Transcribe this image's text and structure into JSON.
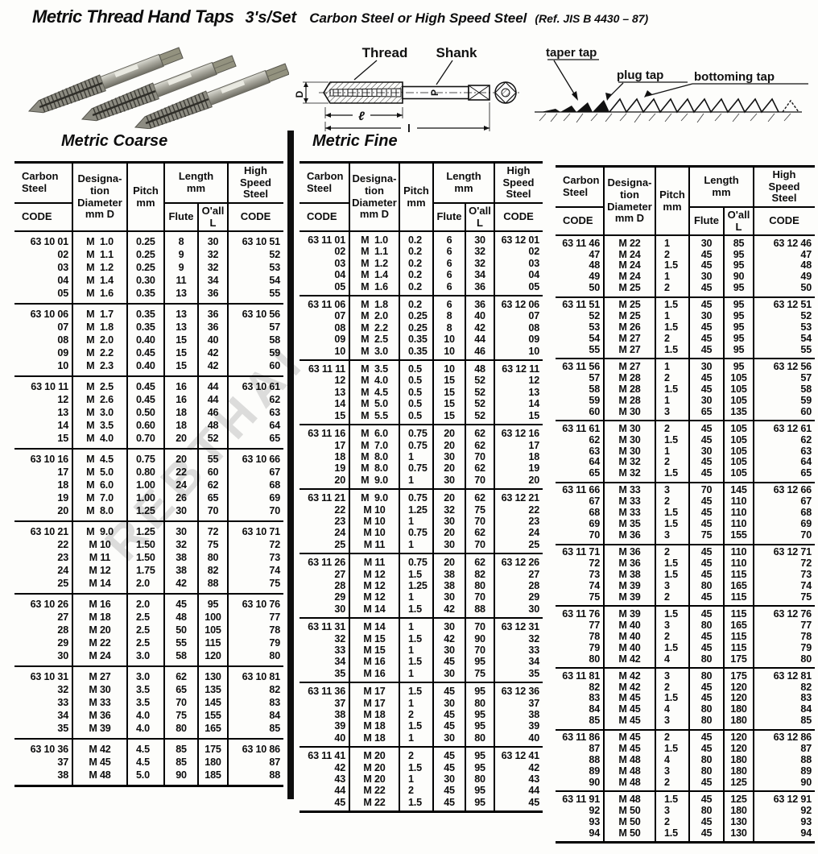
{
  "header": {
    "title": "Metric Thread Hand Taps",
    "set": "3's/Set",
    "material": "Carbon Steel or  High Speed Steel",
    "ref": "(Ref. JIS B 4430 – 87)"
  },
  "sections": {
    "coarse_title": "Metric Coarse",
    "fine_title": "Metric Fine"
  },
  "drawing": {
    "thread": "Thread",
    "shank": "Shank",
    "dim_d": "D",
    "dim_p": "P",
    "dim_len_small": "ℓ",
    "dim_len_big": "l"
  },
  "tap_types": {
    "taper": "taper tap",
    "plug": "plug tap",
    "bottoming": "bottoming tap"
  },
  "watermark": {
    "text": "REBTHAI"
  },
  "column_headers": {
    "carbon_steel": "Carbon\nSteel",
    "code": "CODE",
    "designation": "Designa-\ntion\nDiameter\nmm D",
    "pitch": "Pitch\nmm",
    "length": "Length\nmm",
    "flute": "Flute",
    "oall": "O'all\nL",
    "high_speed_steel": "High\nSpeed\nSteel"
  },
  "tables": {
    "coarse": {
      "groups": [
        [
          [
            "63 10 01",
            "M  1.0",
            "0.25",
            "8",
            "30",
            "63 10 51"
          ],
          [
            "02",
            "M  1.1",
            "0.25",
            "9",
            "32",
            "52"
          ],
          [
            "03",
            "M  1.2",
            "0.25",
            "9",
            "32",
            "53"
          ],
          [
            "04",
            "M  1.4",
            "0.30",
            "11",
            "34",
            "54"
          ],
          [
            "05",
            "M  1.6",
            "0.35",
            "13",
            "36",
            "55"
          ]
        ],
        [
          [
            "63 10 06",
            "M  1.7",
            "0.35",
            "13",
            "36",
            "63 10 56"
          ],
          [
            "07",
            "M  1.8",
            "0.35",
            "13",
            "36",
            "57"
          ],
          [
            "08",
            "M  2.0",
            "0.40",
            "15",
            "40",
            "58"
          ],
          [
            "09",
            "M  2.2",
            "0.45",
            "15",
            "42",
            "59"
          ],
          [
            "10",
            "M  2.3",
            "0.40",
            "15",
            "42",
            "60"
          ]
        ],
        [
          [
            "63 10 11",
            "M  2.5",
            "0.45",
            "16",
            "44",
            "63 10 61"
          ],
          [
            "12",
            "M  2.6",
            "0.45",
            "16",
            "44",
            "62"
          ],
          [
            "13",
            "M  3.0",
            "0.50",
            "18",
            "46",
            "63"
          ],
          [
            "14",
            "M  3.5",
            "0.60",
            "18",
            "48",
            "64"
          ],
          [
            "15",
            "M  4.0",
            "0.70",
            "20",
            "52",
            "65"
          ]
        ],
        [
          [
            "63 10 16",
            "M  4.5",
            "0.75",
            "20",
            "55",
            "63 10 66"
          ],
          [
            "17",
            "M  5.0",
            "0.80",
            "22",
            "60",
            "67"
          ],
          [
            "18",
            "M  6.0",
            "1.00",
            "24",
            "62",
            "68"
          ],
          [
            "19",
            "M  7.0",
            "1.00",
            "26",
            "65",
            "69"
          ],
          [
            "20",
            "M  8.0",
            "1.25",
            "30",
            "70",
            "70"
          ]
        ],
        [
          [
            "63 10 21",
            "M  9.0",
            "1.25",
            "30",
            "72",
            "63 10 71"
          ],
          [
            "22",
            "M 10",
            "1.50",
            "32",
            "75",
            "72"
          ],
          [
            "23",
            "M 11",
            "1.50",
            "38",
            "80",
            "73"
          ],
          [
            "24",
            "M 12",
            "1.75",
            "38",
            "82",
            "74"
          ],
          [
            "25",
            "M 14",
            "2.0",
            "42",
            "88",
            "75"
          ]
        ],
        [
          [
            "63 10 26",
            "M 16",
            "2.0",
            "45",
            "95",
            "63 10 76"
          ],
          [
            "27",
            "M 18",
            "2.5",
            "48",
            "100",
            "77"
          ],
          [
            "28",
            "M 20",
            "2.5",
            "50",
            "105",
            "78"
          ],
          [
            "29",
            "M 22",
            "2.5",
            "55",
            "115",
            "79"
          ],
          [
            "30",
            "M 24",
            "3.0",
            "58",
            "120",
            "80"
          ]
        ],
        [
          [
            "63 10 31",
            "M 27",
            "3.0",
            "62",
            "130",
            "63 10 81"
          ],
          [
            "32",
            "M 30",
            "3.5",
            "65",
            "135",
            "82"
          ],
          [
            "33",
            "M 33",
            "3.5",
            "70",
            "145",
            "83"
          ],
          [
            "34",
            "M 36",
            "4.0",
            "75",
            "155",
            "84"
          ],
          [
            "35",
            "M 39",
            "4.0",
            "80",
            "165",
            "85"
          ]
        ],
        [
          [
            "63 10 36",
            "M 42",
            "4.5",
            "85",
            "175",
            "63 10 86"
          ],
          [
            "37",
            "M 45",
            "4.5",
            "85",
            "180",
            "87"
          ],
          [
            "38",
            "M 48",
            "5.0",
            "90",
            "185",
            "88"
          ]
        ]
      ]
    },
    "fine_left": {
      "groups": [
        [
          [
            "63 11 01",
            "M  1.0",
            "0.2",
            "6",
            "30",
            "63 12 01"
          ],
          [
            "02",
            "M  1.1",
            "0.2",
            "6",
            "32",
            "02"
          ],
          [
            "03",
            "M  1.2",
            "0.2",
            "6",
            "32",
            "03"
          ],
          [
            "04",
            "M  1.4",
            "0.2",
            "6",
            "34",
            "04"
          ],
          [
            "05",
            "M  1.6",
            "0.2",
            "6",
            "36",
            "05"
          ]
        ],
        [
          [
            "63 11 06",
            "M  1.8",
            "0.2",
            "6",
            "36",
            "63 12 06"
          ],
          [
            "07",
            "M  2.0",
            "0.25",
            "8",
            "40",
            "07"
          ],
          [
            "08",
            "M  2.2",
            "0.25",
            "8",
            "42",
            "08"
          ],
          [
            "09",
            "M  2.5",
            "0.35",
            "10",
            "44",
            "09"
          ],
          [
            "10",
            "M  3.0",
            "0.35",
            "10",
            "46",
            "10"
          ]
        ],
        [
          [
            "63 11 11",
            "M  3.5",
            "0.5",
            "10",
            "48",
            "63 12 11"
          ],
          [
            "12",
            "M  4.0",
            "0.5",
            "15",
            "52",
            "12"
          ],
          [
            "13",
            "M  4.5",
            "0.5",
            "15",
            "52",
            "13"
          ],
          [
            "14",
            "M  5.0",
            "0.5",
            "15",
            "52",
            "14"
          ],
          [
            "15",
            "M  5.5",
            "0.5",
            "15",
            "52",
            "15"
          ]
        ],
        [
          [
            "63 11 16",
            "M  6.0",
            "0.75",
            "20",
            "62",
            "63 12 16"
          ],
          [
            "17",
            "M  7.0",
            "0.75",
            "20",
            "62",
            "17"
          ],
          [
            "18",
            "M  8.0",
            "1",
            "30",
            "70",
            "18"
          ],
          [
            "19",
            "M  8.0",
            "0.75",
            "20",
            "62",
            "19"
          ],
          [
            "20",
            "M  9.0",
            "1",
            "30",
            "70",
            "20"
          ]
        ],
        [
          [
            "63 11 21",
            "M  9.0",
            "0.75",
            "20",
            "62",
            "63 12 21"
          ],
          [
            "22",
            "M 10",
            "1.25",
            "32",
            "75",
            "22"
          ],
          [
            "23",
            "M 10",
            "1",
            "30",
            "70",
            "23"
          ],
          [
            "24",
            "M 10",
            "0.75",
            "20",
            "62",
            "24"
          ],
          [
            "25",
            "M 11",
            "1",
            "30",
            "70",
            "25"
          ]
        ],
        [
          [
            "63 11 26",
            "M 11",
            "0.75",
            "20",
            "62",
            "63 12 26"
          ],
          [
            "27",
            "M 12",
            "1.5",
            "38",
            "82",
            "27"
          ],
          [
            "28",
            "M 12",
            "1.25",
            "38",
            "80",
            "28"
          ],
          [
            "29",
            "M 12",
            "1",
            "30",
            "70",
            "29"
          ],
          [
            "30",
            "M 14",
            "1.5",
            "42",
            "88",
            "30"
          ]
        ],
        [
          [
            "63 11 31",
            "M 14",
            "1",
            "30",
            "70",
            "63 12 31"
          ],
          [
            "32",
            "M 15",
            "1.5",
            "42",
            "90",
            "32"
          ],
          [
            "33",
            "M 15",
            "1",
            "30",
            "70",
            "33"
          ],
          [
            "34",
            "M 16",
            "1.5",
            "45",
            "95",
            "34"
          ],
          [
            "35",
            "M 16",
            "1",
            "30",
            "75",
            "35"
          ]
        ],
        [
          [
            "63 11 36",
            "M 17",
            "1.5",
            "45",
            "95",
            "63 12 36"
          ],
          [
            "37",
            "M 17",
            "1",
            "30",
            "80",
            "37"
          ],
          [
            "38",
            "M 18",
            "2",
            "45",
            "95",
            "38"
          ],
          [
            "39",
            "M 18",
            "1.5",
            "45",
            "95",
            "39"
          ],
          [
            "40",
            "M 18",
            "1",
            "30",
            "80",
            "40"
          ]
        ],
        [
          [
            "63 11 41",
            "M 20",
            "2",
            "45",
            "95",
            "63 12 41"
          ],
          [
            "42",
            "M 20",
            "1.5",
            "45",
            "95",
            "42"
          ],
          [
            "43",
            "M 20",
            "1",
            "30",
            "80",
            "43"
          ],
          [
            "44",
            "M 22",
            "2",
            "45",
            "95",
            "44"
          ],
          [
            "45",
            "M 22",
            "1.5",
            "45",
            "95",
            "45"
          ]
        ]
      ]
    },
    "fine_right": {
      "groups": [
        [
          [
            "63 11 46",
            "M 22",
            "1",
            "30",
            "85",
            "63 12 46"
          ],
          [
            "47",
            "M 24",
            "2",
            "45",
            "95",
            "47"
          ],
          [
            "48",
            "M 24",
            "1.5",
            "45",
            "95",
            "48"
          ],
          [
            "49",
            "M 24",
            "1",
            "30",
            "90",
            "49"
          ],
          [
            "50",
            "M 25",
            "2",
            "45",
            "95",
            "50"
          ]
        ],
        [
          [
            "63 11 51",
            "M 25",
            "1.5",
            "45",
            "95",
            "63 12 51"
          ],
          [
            "52",
            "M 25",
            "1",
            "30",
            "95",
            "52"
          ],
          [
            "53",
            "M 26",
            "1.5",
            "45",
            "95",
            "53"
          ],
          [
            "54",
            "M 27",
            "2",
            "45",
            "95",
            "54"
          ],
          [
            "55",
            "M 27",
            "1.5",
            "45",
            "95",
            "55"
          ]
        ],
        [
          [
            "63 11 56",
            "M 27",
            "1",
            "30",
            "95",
            "63 12 56"
          ],
          [
            "57",
            "M 28",
            "2",
            "45",
            "105",
            "57"
          ],
          [
            "58",
            "M 28",
            "1.5",
            "45",
            "105",
            "58"
          ],
          [
            "59",
            "M 28",
            "1",
            "30",
            "105",
            "59"
          ],
          [
            "60",
            "M 30",
            "3",
            "65",
            "135",
            "60"
          ]
        ],
        [
          [
            "63 11 61",
            "M 30",
            "2",
            "45",
            "105",
            "63 12 61"
          ],
          [
            "62",
            "M 30",
            "1.5",
            "45",
            "105",
            "62"
          ],
          [
            "63",
            "M 30",
            "1",
            "30",
            "105",
            "63"
          ],
          [
            "64",
            "M 32",
            "2",
            "45",
            "105",
            "64"
          ],
          [
            "65",
            "M 32",
            "1.5",
            "45",
            "105",
            "65"
          ]
        ],
        [
          [
            "63 11 66",
            "M 33",
            "3",
            "70",
            "145",
            "63 12 66"
          ],
          [
            "67",
            "M 33",
            "2",
            "45",
            "110",
            "67"
          ],
          [
            "68",
            "M 33",
            "1.5",
            "45",
            "110",
            "68"
          ],
          [
            "69",
            "M 35",
            "1.5",
            "45",
            "110",
            "69"
          ],
          [
            "70",
            "M 36",
            "3",
            "75",
            "155",
            "70"
          ]
        ],
        [
          [
            "63 11 71",
            "M 36",
            "2",
            "45",
            "110",
            "63 12 71"
          ],
          [
            "72",
            "M 36",
            "1.5",
            "45",
            "110",
            "72"
          ],
          [
            "73",
            "M 38",
            "1.5",
            "45",
            "115",
            "73"
          ],
          [
            "74",
            "M 39",
            "3",
            "80",
            "165",
            "74"
          ],
          [
            "75",
            "M 39",
            "2",
            "45",
            "115",
            "75"
          ]
        ],
        [
          [
            "63 11 76",
            "M 39",
            "1.5",
            "45",
            "115",
            "63 12 76"
          ],
          [
            "77",
            "M 40",
            "3",
            "80",
            "165",
            "77"
          ],
          [
            "78",
            "M 40",
            "2",
            "45",
            "115",
            "78"
          ],
          [
            "79",
            "M 40",
            "1.5",
            "45",
            "115",
            "79"
          ],
          [
            "80",
            "M 42",
            "4",
            "80",
            "175",
            "80"
          ]
        ],
        [
          [
            "63 11 81",
            "M 42",
            "3",
            "80",
            "175",
            "63 12 81"
          ],
          [
            "82",
            "M 42",
            "2",
            "45",
            "120",
            "82"
          ],
          [
            "83",
            "M 45",
            "1.5",
            "45",
            "120",
            "83"
          ],
          [
            "84",
            "M 45",
            "4",
            "80",
            "180",
            "84"
          ],
          [
            "85",
            "M 45",
            "3",
            "80",
            "180",
            "85"
          ]
        ],
        [
          [
            "63 11 86",
            "M 45",
            "2",
            "45",
            "120",
            "63 12 86"
          ],
          [
            "87",
            "M 45",
            "1.5",
            "45",
            "120",
            "87"
          ],
          [
            "88",
            "M 48",
            "4",
            "80",
            "180",
            "88"
          ],
          [
            "89",
            "M 48",
            "3",
            "80",
            "180",
            "89"
          ],
          [
            "90",
            "M 48",
            "2",
            "45",
            "125",
            "90"
          ]
        ],
        [
          [
            "63 11 91",
            "M 48",
            "1.5",
            "45",
            "125",
            "63 12 91"
          ],
          [
            "92",
            "M 50",
            "3",
            "80",
            "180",
            "92"
          ],
          [
            "93",
            "M 50",
            "2",
            "45",
            "130",
            "93"
          ],
          [
            "94",
            "M 50",
            "1.5",
            "45",
            "130",
            "94"
          ]
        ]
      ]
    }
  }
}
